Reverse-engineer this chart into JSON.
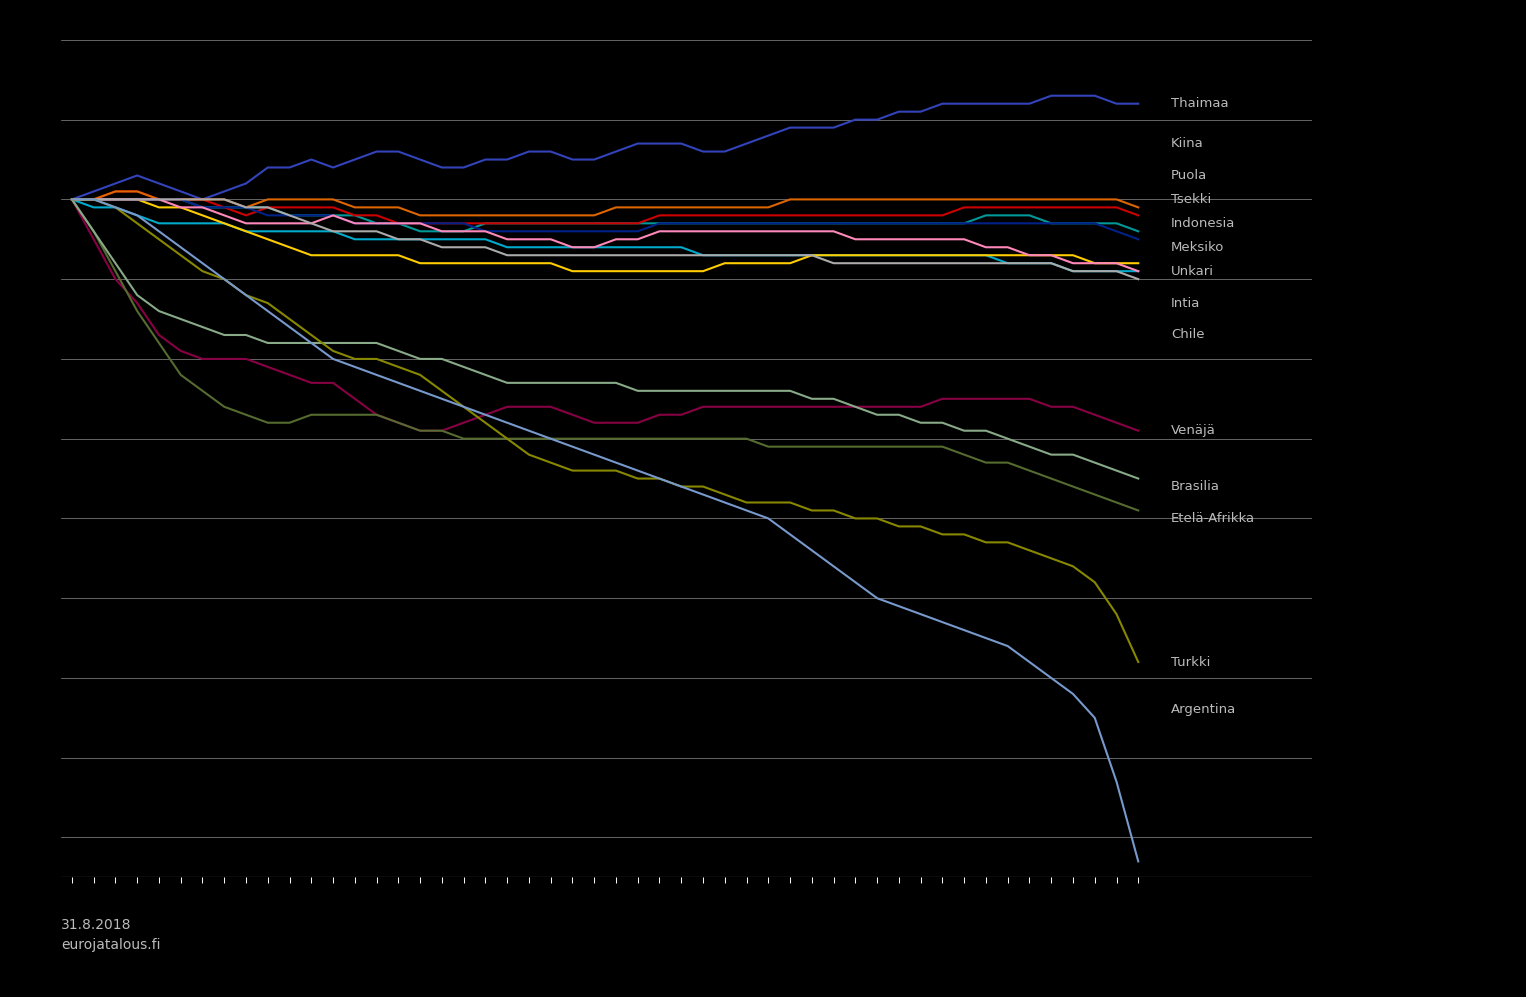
{
  "background_color": "#000000",
  "text_color": "#bbbbbb",
  "footer_text": "31.8.2018\neurojatalous.fi",
  "n_points": 50,
  "ylim": [
    -85,
    20
  ],
  "series": [
    {
      "name": "Thaimaa",
      "color": "#3344bb",
      "values": [
        0,
        1,
        2,
        3,
        2,
        1,
        0,
        1,
        2,
        4,
        4,
        5,
        4,
        5,
        6,
        6,
        5,
        4,
        4,
        5,
        5,
        6,
        6,
        5,
        5,
        6,
        7,
        7,
        7,
        6,
        6,
        7,
        8,
        9,
        9,
        9,
        10,
        10,
        11,
        11,
        12,
        12,
        12,
        12,
        12,
        13,
        13,
        13,
        12,
        12
      ]
    },
    {
      "name": "Kiina",
      "color": "#009999",
      "values": [
        0,
        0,
        0,
        0,
        0,
        0,
        -1,
        -1,
        -1,
        -1,
        -2,
        -2,
        -2,
        -2,
        -3,
        -3,
        -4,
        -4,
        -4,
        -3,
        -3,
        -3,
        -3,
        -3,
        -3,
        -3,
        -3,
        -3,
        -3,
        -3,
        -3,
        -3,
        -3,
        -3,
        -3,
        -3,
        -3,
        -3,
        -3,
        -3,
        -3,
        -3,
        -2,
        -2,
        -2,
        -3,
        -3,
        -3,
        -3,
        -4
      ]
    },
    {
      "name": "Puola",
      "color": "#cc0000",
      "values": [
        0,
        0,
        1,
        1,
        0,
        0,
        0,
        -1,
        -2,
        -1,
        -1,
        -1,
        -1,
        -2,
        -2,
        -3,
        -3,
        -3,
        -3,
        -3,
        -3,
        -3,
        -3,
        -3,
        -3,
        -3,
        -3,
        -2,
        -2,
        -2,
        -2,
        -2,
        -2,
        -2,
        -2,
        -2,
        -2,
        -2,
        -2,
        -2,
        -2,
        -1,
        -1,
        -1,
        -1,
        -1,
        -1,
        -1,
        -1,
        -2
      ]
    },
    {
      "name": "Tsekki",
      "color": "#dd6600",
      "values": [
        0,
        0,
        1,
        1,
        0,
        0,
        0,
        0,
        -1,
        0,
        0,
        0,
        0,
        -1,
        -1,
        -1,
        -2,
        -2,
        -2,
        -2,
        -2,
        -2,
        -2,
        -2,
        -2,
        -1,
        -1,
        -1,
        -1,
        -1,
        -1,
        -1,
        -1,
        0,
        0,
        0,
        0,
        0,
        0,
        0,
        0,
        0,
        0,
        0,
        0,
        0,
        0,
        0,
        0,
        -1
      ]
    },
    {
      "name": "Indonesia",
      "color": "#00aacc",
      "values": [
        0,
        -1,
        -1,
        -2,
        -3,
        -3,
        -3,
        -3,
        -4,
        -4,
        -4,
        -4,
        -4,
        -5,
        -5,
        -5,
        -5,
        -5,
        -5,
        -5,
        -6,
        -6,
        -6,
        -6,
        -6,
        -6,
        -6,
        -6,
        -6,
        -7,
        -7,
        -7,
        -7,
        -7,
        -7,
        -7,
        -7,
        -7,
        -7,
        -7,
        -7,
        -7,
        -7,
        -8,
        -8,
        -8,
        -9,
        -9,
        -9,
        -9
      ]
    },
    {
      "name": "Meksiko",
      "color": "#ffcc00",
      "values": [
        0,
        0,
        0,
        0,
        -1,
        -1,
        -2,
        -3,
        -4,
        -5,
        -6,
        -7,
        -7,
        -7,
        -7,
        -7,
        -8,
        -8,
        -8,
        -8,
        -8,
        -8,
        -8,
        -9,
        -9,
        -9,
        -9,
        -9,
        -9,
        -9,
        -8,
        -8,
        -8,
        -8,
        -7,
        -7,
        -7,
        -7,
        -7,
        -7,
        -7,
        -7,
        -7,
        -7,
        -7,
        -7,
        -7,
        -8,
        -8,
        -8
      ]
    },
    {
      "name": "Unkari",
      "color": "#002288",
      "values": [
        0,
        0,
        0,
        0,
        0,
        0,
        -1,
        -1,
        -1,
        -2,
        -2,
        -2,
        -2,
        -3,
        -3,
        -3,
        -3,
        -3,
        -3,
        -4,
        -4,
        -4,
        -4,
        -4,
        -4,
        -4,
        -4,
        -3,
        -3,
        -3,
        -3,
        -3,
        -3,
        -3,
        -3,
        -3,
        -3,
        -3,
        -3,
        -3,
        -3,
        -3,
        -3,
        -3,
        -3,
        -3,
        -3,
        -3,
        -4,
        -5
      ]
    },
    {
      "name": "Intia",
      "color": "#ff88bb",
      "values": [
        0,
        0,
        0,
        0,
        0,
        -1,
        -1,
        -2,
        -3,
        -3,
        -3,
        -3,
        -2,
        -3,
        -3,
        -3,
        -3,
        -4,
        -4,
        -4,
        -5,
        -5,
        -5,
        -6,
        -6,
        -5,
        -5,
        -4,
        -4,
        -4,
        -4,
        -4,
        -4,
        -4,
        -4,
        -4,
        -5,
        -5,
        -5,
        -5,
        -5,
        -5,
        -6,
        -6,
        -7,
        -7,
        -8,
        -8,
        -8,
        -9
      ]
    },
    {
      "name": "Chile",
      "color": "#aaaaaa",
      "values": [
        0,
        0,
        0,
        0,
        0,
        0,
        0,
        0,
        -1,
        -1,
        -2,
        -3,
        -4,
        -4,
        -4,
        -5,
        -5,
        -6,
        -6,
        -6,
        -7,
        -7,
        -7,
        -7,
        -7,
        -7,
        -7,
        -7,
        -7,
        -7,
        -7,
        -7,
        -7,
        -7,
        -7,
        -8,
        -8,
        -8,
        -8,
        -8,
        -8,
        -8,
        -8,
        -8,
        -8,
        -8,
        -9,
        -9,
        -9,
        -10
      ]
    },
    {
      "name": "Venäjä",
      "color": "#880044",
      "values": [
        0,
        -5,
        -10,
        -13,
        -17,
        -19,
        -20,
        -20,
        -20,
        -21,
        -22,
        -23,
        -23,
        -25,
        -27,
        -28,
        -29,
        -29,
        -28,
        -27,
        -26,
        -26,
        -26,
        -27,
        -28,
        -28,
        -28,
        -27,
        -27,
        -26,
        -26,
        -26,
        -26,
        -26,
        -26,
        -26,
        -26,
        -26,
        -26,
        -26,
        -25,
        -25,
        -25,
        -25,
        -25,
        -26,
        -26,
        -27,
        -28,
        -29
      ]
    },
    {
      "name": "Brasilia",
      "color": "#556b2f",
      "values": [
        0,
        -4,
        -9,
        -14,
        -18,
        -22,
        -24,
        -26,
        -27,
        -28,
        -28,
        -27,
        -27,
        -27,
        -27,
        -28,
        -29,
        -29,
        -30,
        -30,
        -30,
        -30,
        -30,
        -30,
        -30,
        -30,
        -30,
        -30,
        -30,
        -30,
        -30,
        -30,
        -31,
        -31,
        -31,
        -31,
        -31,
        -31,
        -31,
        -31,
        -31,
        -32,
        -33,
        -33,
        -34,
        -35,
        -36,
        -37,
        -38,
        -39
      ]
    },
    {
      "name": "Etelä-Afrikka",
      "color": "#88aa88",
      "values": [
        0,
        -4,
        -8,
        -12,
        -14,
        -15,
        -16,
        -17,
        -17,
        -18,
        -18,
        -18,
        -18,
        -18,
        -18,
        -19,
        -20,
        -20,
        -21,
        -22,
        -23,
        -23,
        -23,
        -23,
        -23,
        -23,
        -24,
        -24,
        -24,
        -24,
        -24,
        -24,
        -24,
        -24,
        -25,
        -25,
        -26,
        -27,
        -27,
        -28,
        -28,
        -29,
        -29,
        -30,
        -31,
        -32,
        -32,
        -33,
        -34,
        -35
      ]
    },
    {
      "name": "Turkki",
      "color": "#888800",
      "values": [
        0,
        0,
        -1,
        -3,
        -5,
        -7,
        -9,
        -10,
        -12,
        -13,
        -15,
        -17,
        -19,
        -20,
        -20,
        -21,
        -22,
        -24,
        -26,
        -28,
        -30,
        -32,
        -33,
        -34,
        -34,
        -34,
        -35,
        -35,
        -36,
        -36,
        -37,
        -38,
        -38,
        -38,
        -39,
        -39,
        -40,
        -40,
        -41,
        -41,
        -42,
        -42,
        -43,
        -43,
        -44,
        -45,
        -46,
        -48,
        -52,
        -58
      ]
    },
    {
      "name": "Argentina",
      "color": "#7799cc",
      "values": [
        0,
        0,
        -1,
        -2,
        -4,
        -6,
        -8,
        -10,
        -12,
        -14,
        -16,
        -18,
        -20,
        -21,
        -22,
        -23,
        -24,
        -25,
        -26,
        -27,
        -28,
        -29,
        -30,
        -31,
        -32,
        -33,
        -34,
        -35,
        -36,
        -37,
        -38,
        -39,
        -40,
        -42,
        -44,
        -46,
        -48,
        -50,
        -51,
        -52,
        -53,
        -54,
        -55,
        -56,
        -58,
        -60,
        -62,
        -65,
        -73,
        -83
      ]
    }
  ]
}
